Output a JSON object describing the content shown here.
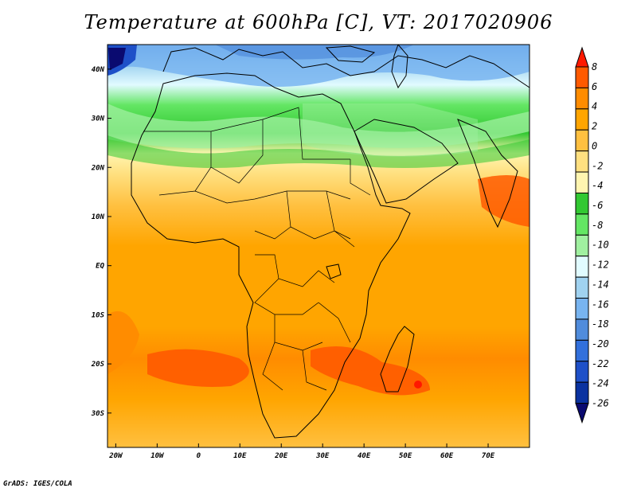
{
  "title": "Temperature at 600hPa [C], VT: 2017020906",
  "credit": "GrADS: IGES/COLA",
  "map": {
    "lon_range": [
      -22,
      80
    ],
    "lat_range": [
      -37,
      45
    ],
    "x_ticks": [
      {
        "lon": -20,
        "label": "20W"
      },
      {
        "lon": -10,
        "label": "10W"
      },
      {
        "lon": 0,
        "label": "0"
      },
      {
        "lon": 10,
        "label": "10E"
      },
      {
        "lon": 20,
        "label": "20E"
      },
      {
        "lon": 30,
        "label": "30E"
      },
      {
        "lon": 40,
        "label": "40E"
      },
      {
        "lon": 50,
        "label": "50E"
      },
      {
        "lon": 60,
        "label": "60E"
      },
      {
        "lon": 70,
        "label": "70E"
      }
    ],
    "y_ticks": [
      {
        "lat": 40,
        "label": "40N"
      },
      {
        "lat": 30,
        "label": "30N"
      },
      {
        "lat": 20,
        "label": "20N"
      },
      {
        "lat": 10,
        "label": "10N"
      },
      {
        "lat": 0,
        "label": "EQ"
      },
      {
        "lat": -10,
        "label": "10S"
      },
      {
        "lat": -20,
        "label": "20S"
      },
      {
        "lat": -30,
        "label": "30S"
      }
    ]
  },
  "colorbar": {
    "labels": [
      "8",
      "6",
      "4",
      "2",
      "0",
      "-2",
      "-4",
      "-6",
      "-8",
      "-10",
      "-12",
      "-14",
      "-16",
      "-18",
      "-20",
      "-22",
      "-24",
      "-26"
    ],
    "colors": [
      "#ff1900",
      "#ff5a00",
      "#ff8c00",
      "#ffa500",
      "#ffc040",
      "#ffe080",
      "#fff5b0",
      "#32c832",
      "#64e664",
      "#a0f0a0",
      "#e1fbff",
      "#a0d2f0",
      "#78b4f0",
      "#508cdc",
      "#3270dc",
      "#1e50c8",
      "#0a32a0",
      "#0a0a70"
    ]
  }
}
